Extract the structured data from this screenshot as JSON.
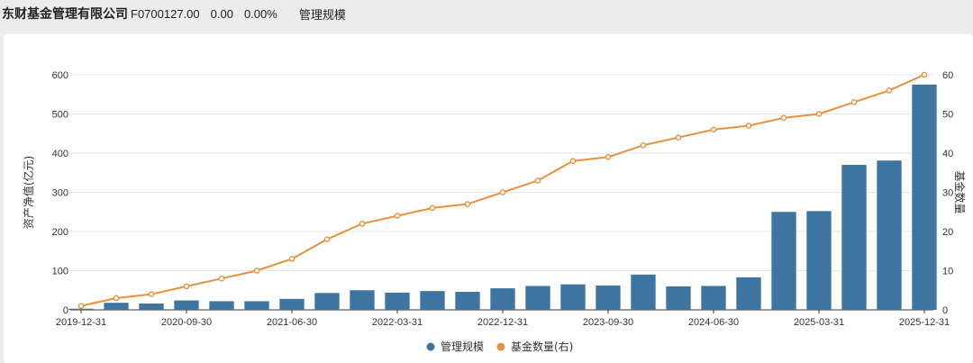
{
  "header": {
    "company": "东财基金管理有限公司",
    "code": "F0700127.00",
    "change": "0.00",
    "change_pct": "0.00%",
    "tab": "管理规模"
  },
  "chart_data": {
    "type": "bar",
    "categories": [
      "2019-12-31",
      "2020-03-31",
      "2020-06-30",
      "2020-09-30",
      "2020-12-31",
      "2021-03-31",
      "2021-06-30",
      "2021-09-30",
      "2021-12-31",
      "2022-03-31",
      "2022-06-30",
      "2022-09-30",
      "2022-12-31",
      "2023-03-31",
      "2023-06-30",
      "2023-09-30",
      "2023-12-31",
      "2024-03-31",
      "2024-06-30",
      "2024-09-30",
      "2024-12-31",
      "2025-03-31",
      "2025-06-30",
      "2025-09-30",
      "2025-12-31"
    ],
    "x_tick_labels": [
      "2019-12-31",
      "2020-09-30",
      "2021-06-30",
      "2022-03-31",
      "2022-12-31",
      "2023-09-30",
      "2024-06-30",
      "2025-03-31",
      "2025-12-31"
    ],
    "series": [
      {
        "name": "管理规模",
        "type": "bar",
        "axis": "left",
        "color": "#3d74a0",
        "values": [
          3,
          18,
          16,
          24,
          22,
          22,
          28,
          43,
          50,
          44,
          48,
          46,
          55,
          61,
          65,
          62,
          90,
          60,
          61,
          83,
          250,
          252,
          370,
          381,
          575
        ]
      },
      {
        "name": "基金数量(右)",
        "type": "line",
        "axis": "right",
        "color": "#e8913e",
        "values": [
          1,
          3,
          4,
          6,
          8,
          10,
          13,
          18,
          22,
          24,
          26,
          27,
          30,
          33,
          38,
          39,
          42,
          44,
          46,
          47,
          49,
          50,
          53,
          56,
          60
        ]
      }
    ],
    "ylabel_left": "资产净值(亿元)",
    "ylabel_right": "基金数量",
    "ylim_left": [
      0,
      600
    ],
    "ylim_right": [
      0,
      60
    ],
    "yticks_left": [
      0,
      100,
      200,
      300,
      400,
      500,
      600
    ],
    "yticks_right": [
      0,
      10,
      20,
      30,
      40,
      50,
      60
    ],
    "grid": true,
    "legend_position": "bottom-center"
  }
}
